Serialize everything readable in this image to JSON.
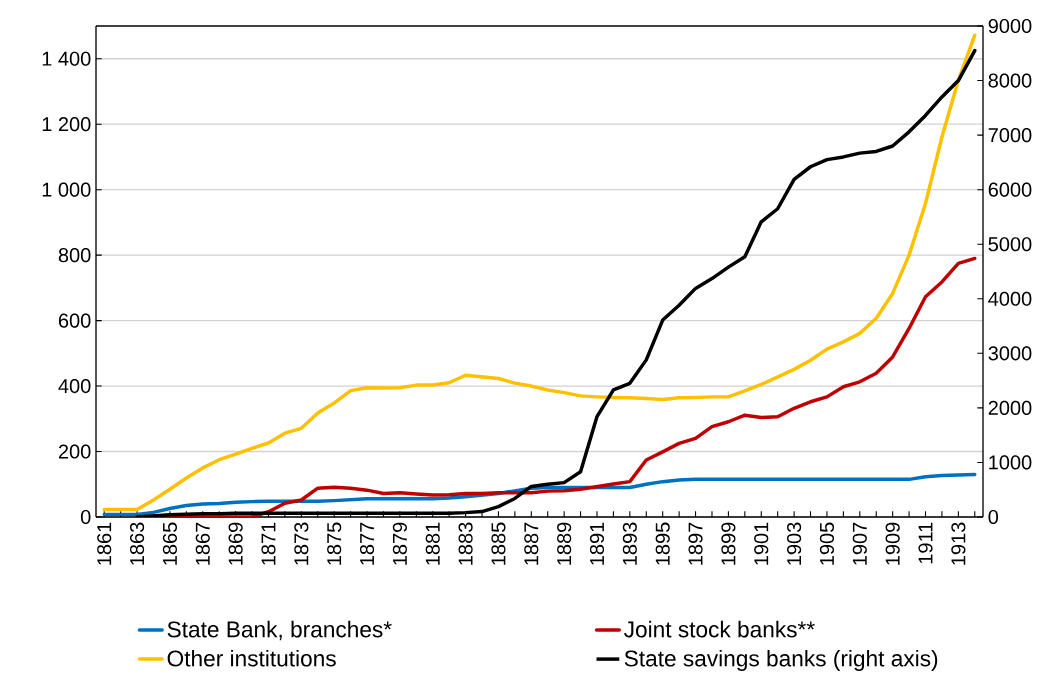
{
  "chart_data": {
    "type": "line",
    "categories": [
      "1861",
      null,
      "1863",
      null,
      "1865",
      null,
      "1867",
      null,
      "1869",
      null,
      "1871",
      null,
      "1873",
      null,
      "1875",
      null,
      "1877",
      null,
      "1879",
      null,
      "1881",
      null,
      "1883",
      null,
      "1885",
      null,
      "1887",
      null,
      "1889",
      null,
      "1891",
      null,
      "1893",
      null,
      "1895",
      null,
      "1897",
      null,
      "1899",
      null,
      "1901",
      null,
      "1903",
      null,
      "1905",
      null,
      "1907",
      null,
      "1909",
      null,
      "1911",
      null,
      "1913",
      null
    ],
    "series": [
      {
        "name": "State Bank, branches*",
        "color": "#0070c0",
        "values": [
          8,
          8,
          8,
          14,
          26,
          35,
          40,
          41,
          45,
          47,
          48,
          48,
          48,
          48,
          50,
          53,
          56,
          56,
          56,
          56,
          56,
          58,
          62,
          67,
          72,
          80,
          88,
          90,
          90,
          90,
          90,
          90,
          90,
          100,
          108,
          113,
          115,
          115,
          115,
          115,
          115,
          115,
          115,
          115,
          115,
          115,
          115,
          115,
          115,
          115,
          123,
          127,
          128,
          130
        ]
      },
      {
        "name": "Joint stock banks**",
        "color": "#c00000",
        "values": [
          null,
          null,
          null,
          null,
          0,
          0,
          0,
          0,
          0,
          0,
          16,
          42,
          52,
          88,
          91,
          88,
          82,
          72,
          74,
          70,
          67,
          68,
          72,
          72,
          74,
          74,
          74,
          79,
          80,
          85,
          93,
          101,
          108,
          174,
          199,
          225,
          240,
          276,
          291,
          311,
          304,
          306,
          332,
          352,
          367,
          398,
          413,
          439,
          489,
          576,
          673,
          718,
          775,
          790
        ]
      },
      {
        "name": "Other institutions",
        "color": "#ffc000",
        "values": [
          23,
          23,
          23,
          52,
          85,
          119,
          150,
          175,
          192,
          210,
          226,
          256,
          271,
          318,
          348,
          386,
          395,
          394,
          395,
          403,
          403,
          410,
          433,
          428,
          423,
          409,
          400,
          388,
          380,
          370,
          367,
          365,
          364,
          362,
          359,
          364,
          365,
          367,
          367,
          385,
          405,
          428,
          451,
          479,
          513,
          535,
          561,
          607,
          683,
          800,
          958,
          1161,
          1334,
          1472
        ]
      },
      {
        "name": "State savings banks (right axis)",
        "color": "#000000",
        "axis": "y2",
        "values": [
          null,
          null,
          0,
          20,
          40,
          50,
          60,
          60,
          70,
          70,
          70,
          70,
          70,
          70,
          70,
          70,
          70,
          70,
          70,
          70,
          70,
          70,
          80,
          100,
          190,
          340,
          560,
          600,
          630,
          830,
          1840,
          2330,
          2450,
          2880,
          3610,
          3880,
          4190,
          4370,
          4580,
          4770,
          5410,
          5650,
          6190,
          6420,
          6550,
          6600,
          6670,
          6700,
          6800,
          7060,
          7360,
          7700,
          8000,
          8550
        ]
      }
    ],
    "ylim": [
      0,
      1500
    ],
    "yticks": [
      0,
      200,
      400,
      600,
      800,
      {
        "value": 1000,
        "label": "1 000"
      },
      {
        "value": 1200,
        "label": "1 200"
      },
      {
        "value": 1400,
        "label": "1 400"
      }
    ],
    "y2lim": [
      0,
      9000
    ],
    "y2ticks": [
      0,
      1000,
      2000,
      3000,
      4000,
      5000,
      6000,
      7000,
      8000,
      9000
    ],
    "grid": "y",
    "legend": "bottom",
    "marker": "none",
    "line_style": "solid"
  }
}
